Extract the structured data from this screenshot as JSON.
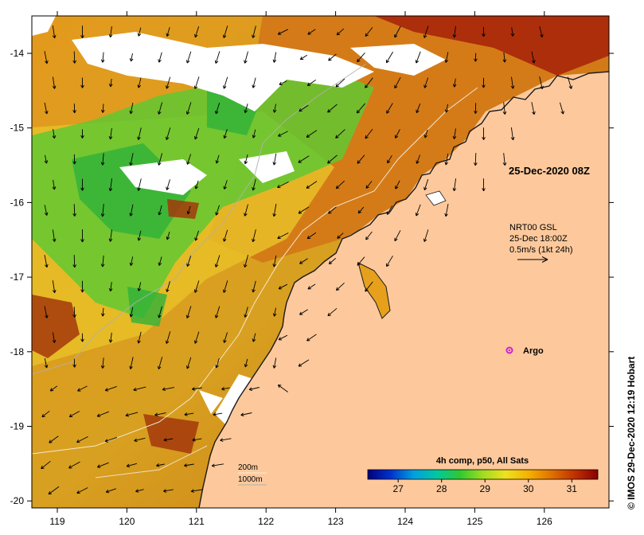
{
  "map": {
    "axes": {
      "x_ticks": [
        "119",
        "120",
        "121",
        "122",
        "123",
        "124",
        "125",
        "126"
      ],
      "y_ticks": [
        "-14",
        "-15",
        "-16",
        "-17",
        "-18",
        "-19",
        "-20"
      ]
    },
    "timestamp_label": "25-Dec-2020 08Z",
    "current_info": {
      "line1": "NRT00 GSL",
      "line2": "25-Dec 18:00Z",
      "line3": "0.5m/s (1kt 24h)"
    },
    "argo_label": "Argo",
    "bathymetry_legend": {
      "line1": "200m",
      "line2": "1000m"
    },
    "colorbar": {
      "title": "4h comp, p50, All Sats",
      "tick_labels": [
        "27",
        "28",
        "29",
        "30",
        "31"
      ],
      "tick_values": [
        27,
        28,
        29,
        30,
        31
      ],
      "range": [
        26.3,
        31.6
      ],
      "stops": [
        "#00007f",
        "#0033cc",
        "#00a0e0",
        "#00c8a0",
        "#30c830",
        "#a0dc20",
        "#f0e020",
        "#f4b000",
        "#e07000",
        "#c03000",
        "#8a0000"
      ]
    },
    "credit": "© IMOS 29-Dec-2020 12:19 Hobart",
    "colors": {
      "land": "#fdc99c",
      "cloud_gap": "#ffffff",
      "arrow": "#000000",
      "argo_marker": "#d020d0"
    }
  }
}
